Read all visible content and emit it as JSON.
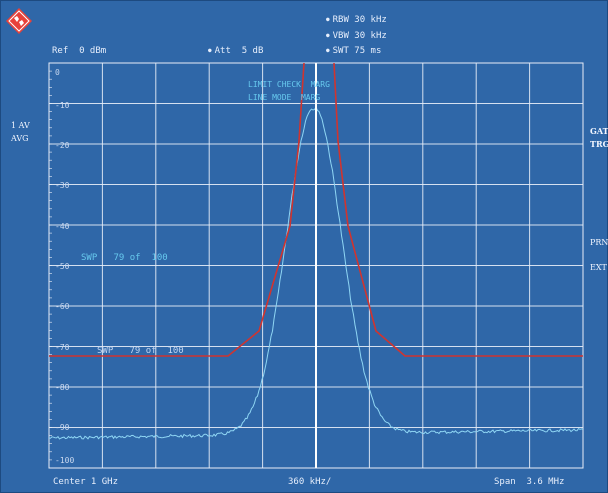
{
  "header": {
    "rbw": "RBW 30 kHz",
    "vbw": "VBW 30 kHz",
    "swt": "SWT 75 ms",
    "ref": "Ref  0 dBm",
    "att": "Att  5 dB"
  },
  "left_labels": {
    "trace": "1 AV",
    "mode": "AVG"
  },
  "right_labels": {
    "gat": "GAT",
    "trg": "TRG",
    "prn": "PRN",
    "ext": "EXT"
  },
  "y_axis": {
    "ticks": [
      "0",
      "-10",
      "-20",
      "-30",
      "-40",
      "-50",
      "-60",
      "-70",
      "-80",
      "-90",
      "-100"
    ]
  },
  "overlays": {
    "limit_check": "LIMIT CHECK  MARG",
    "line_mode": "LINE MODE  MARG",
    "sweep_1": "SWP   79 of  100",
    "sweep_2": "SWP   79 of  100"
  },
  "footer": {
    "center": "Center 1 GHz",
    "div": "360 kHz/",
    "span": "Span  3.6 MHz"
  },
  "colors": {
    "background": "#2f67a8",
    "grid": "#e8eef8",
    "trace": "#8fd6f4",
    "limit_line": "#d0342f"
  }
}
